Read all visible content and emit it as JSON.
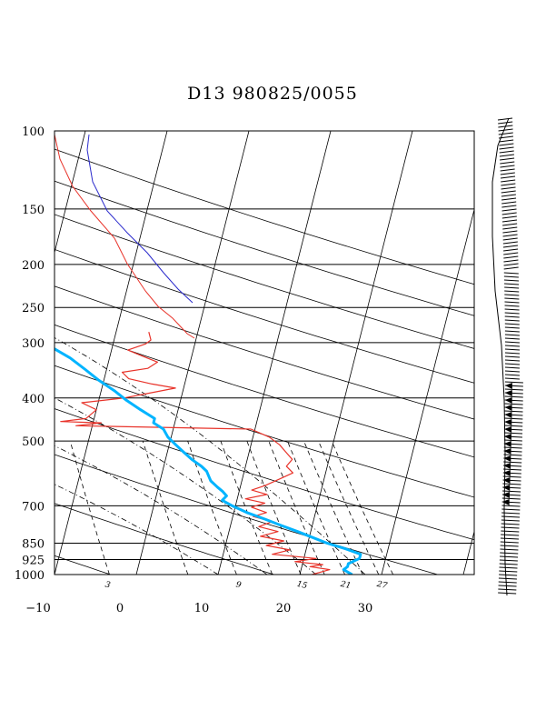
{
  "chart_data": {
    "type": "line",
    "title": "D13 980825/0055",
    "y_axis": {
      "scale": "log",
      "range": [
        1000,
        100
      ],
      "ticks": [
        100,
        150,
        200,
        250,
        300,
        400,
        500,
        700,
        850,
        925,
        1000
      ]
    },
    "x_axis": {
      "range": [
        -10,
        40
      ],
      "ticks": [
        -10,
        0,
        10,
        20,
        30
      ]
    },
    "mixing_ratio_labels": [
      "3",
      "9",
      "15",
      "21",
      "27"
    ],
    "series": [
      {
        "color": "#e8332a",
        "role": "dewpoint",
        "points": [
          [
            1000,
            21.5
          ],
          [
            975,
            23.5
          ],
          [
            960,
            21
          ],
          [
            950,
            22.5
          ],
          [
            935,
            19
          ],
          [
            920,
            21.5
          ],
          [
            900,
            16
          ],
          [
            880,
            18
          ],
          [
            860,
            15
          ],
          [
            840,
            17
          ],
          [
            820,
            14
          ],
          [
            800,
            16
          ],
          [
            780,
            13.5
          ],
          [
            760,
            15
          ],
          [
            740,
            12.5
          ],
          [
            725,
            14
          ],
          [
            705,
            12
          ],
          [
            690,
            13.5
          ],
          [
            675,
            11
          ],
          [
            660,
            13.5
          ],
          [
            645,
            11.5
          ],
          [
            630,
            13
          ],
          [
            610,
            14.5
          ],
          [
            590,
            16
          ],
          [
            570,
            15
          ],
          [
            550,
            15.5
          ],
          [
            530,
            14.5
          ],
          [
            510,
            13.5
          ],
          [
            490,
            12
          ],
          [
            470,
            9.5
          ],
          [
            462,
            -12
          ],
          [
            455,
            -9
          ],
          [
            452,
            -14
          ],
          [
            445,
            -11
          ],
          [
            425,
            -10
          ],
          [
            410,
            -12
          ],
          [
            400,
            -7
          ],
          [
            390,
            -4
          ],
          [
            380,
            -1
          ],
          [
            372,
            -4
          ],
          [
            362,
            -7
          ],
          [
            350,
            -8
          ],
          [
            343,
            -5
          ],
          [
            332,
            -4
          ],
          [
            322,
            -6
          ],
          [
            312,
            -8
          ],
          [
            302,
            -6
          ],
          [
            296,
            -5.5
          ],
          [
            284,
            -6
          ]
        ]
      },
      {
        "color": "#00b4ff",
        "role": "temperature",
        "points": [
          [
            1000,
            26.4
          ],
          [
            975,
            25.2
          ],
          [
            960,
            25.6
          ],
          [
            945,
            25.6
          ],
          [
            920,
            26.8
          ],
          [
            900,
            26.8
          ],
          [
            875,
            24.8
          ],
          [
            850,
            22.4
          ],
          [
            825,
            20.4
          ],
          [
            800,
            18.4
          ],
          [
            775,
            16.2
          ],
          [
            750,
            14.0
          ],
          [
            725,
            11.6
          ],
          [
            700,
            9.6
          ],
          [
            680,
            8.2
          ],
          [
            665,
            8.6
          ],
          [
            650,
            8.0
          ],
          [
            635,
            7.2
          ],
          [
            615,
            6.2
          ],
          [
            600,
            5.8
          ],
          [
            585,
            5.4
          ],
          [
            570,
            4.6
          ],
          [
            550,
            3.2
          ],
          [
            530,
            2.0
          ],
          [
            510,
            0.8
          ],
          [
            490,
            -0.4
          ],
          [
            470,
            -1.2
          ],
          [
            455,
            -2.6
          ],
          [
            445,
            -2.6
          ],
          [
            425,
            -4.6
          ],
          [
            405,
            -6.6
          ],
          [
            385,
            -8.4
          ],
          [
            365,
            -10.6
          ],
          [
            345,
            -12.6
          ],
          [
            325,
            -14.8
          ],
          [
            310,
            -17.0
          ],
          [
            300,
            -18.6
          ],
          [
            285,
            -20.6
          ],
          [
            270,
            -22.8
          ],
          [
            255,
            -24.8
          ],
          [
            240,
            -27.0
          ]
        ]
      }
    ],
    "grid": true,
    "legend": "none",
    "wind_barbs": "right side column"
  }
}
